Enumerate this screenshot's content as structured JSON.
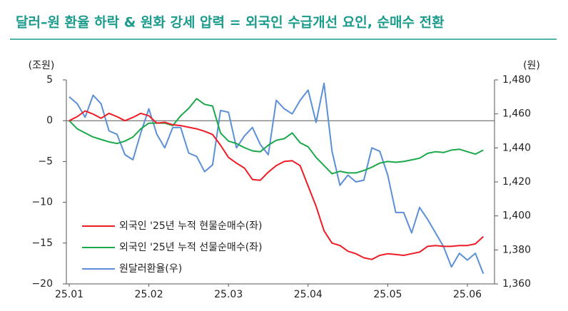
{
  "chart_data": {
    "type": "line",
    "title": "달러–원 환율 하락 & 원화 강세 압력 = 외국인 수급개선 요인, 순매수 전환",
    "y_label": "(조원)",
    "y2_label": "(원)",
    "categories": [
      "25.01",
      null,
      null,
      null,
      null,
      null,
      null,
      null,
      null,
      null,
      "25.02",
      null,
      null,
      null,
      null,
      null,
      null,
      null,
      null,
      null,
      "25.03",
      null,
      null,
      null,
      null,
      null,
      null,
      null,
      null,
      null,
      "25.04",
      null,
      null,
      null,
      null,
      null,
      null,
      null,
      null,
      null,
      "25.05",
      null,
      null,
      null,
      null,
      null,
      null,
      null,
      null,
      null,
      "25.06",
      null,
      null
    ],
    "ylim": [
      -20,
      5
    ],
    "yticks": [
      {
        "value": 5,
        "label": "5"
      },
      {
        "value": 0,
        "label": "0"
      },
      {
        "value": -5,
        "label": "−5"
      },
      {
        "value": -10,
        "label": "−10"
      },
      {
        "value": -15,
        "label": "−15"
      },
      {
        "value": -20,
        "label": "−20"
      }
    ],
    "y2lim": [
      1360,
      1480
    ],
    "y2ticks": [
      {
        "value": 1480,
        "label": "1,480"
      },
      {
        "value": 1460,
        "label": "1,460"
      },
      {
        "value": 1440,
        "label": "1,440"
      },
      {
        "value": 1420,
        "label": "1,420"
      },
      {
        "value": 1400,
        "label": "1,400"
      },
      {
        "value": 1380,
        "label": "1,380"
      },
      {
        "value": 1360,
        "label": "1,360"
      }
    ],
    "legend": "lower left",
    "series": [
      {
        "name": "외국인 '25년 누적 현물순매수(좌)",
        "color": "#ee1c25",
        "values": [
          0,
          0.5,
          1.2,
          0.8,
          0.3,
          0.9,
          0.5,
          0,
          0.4,
          0.9,
          0.6,
          -0.3,
          -0.2,
          -0.5,
          -0.6,
          -0.8,
          -1,
          -1.3,
          -1.7,
          -3,
          -4.5,
          -5.2,
          -5.8,
          -7.2,
          -7.3,
          -6.3,
          -5.5,
          -5,
          -4.9,
          -5.5,
          -8,
          -10.5,
          -13.5,
          -15,
          -15.3,
          -16,
          -16.3,
          -16.8,
          -17,
          -16.5,
          -16.3,
          -16.4,
          -16.5,
          -16.3,
          -16.1,
          -15.4,
          -15.3,
          -15.4,
          -15.4,
          -15.3,
          -15.3,
          -15.1,
          -14.2
        ]
      },
      {
        "name": "외국인 '25년 누적 선물순매수(좌)",
        "color": "#1aa84a",
        "values": [
          0,
          -1,
          -1.5,
          -2,
          -2.3,
          -2.6,
          -2.8,
          -2.5,
          -2,
          -1,
          -0.3,
          -0.3,
          -0.3,
          -0.6,
          0.6,
          1.5,
          2.7,
          2,
          1.8,
          -1.5,
          -2.5,
          -2.8,
          -3.3,
          -3.7,
          -3.8,
          -3,
          -2.4,
          -2.2,
          -1.5,
          -2.7,
          -3.2,
          -4.5,
          -5.5,
          -6.5,
          -6.2,
          -6.4,
          -6.4,
          -6.1,
          -5.7,
          -5.2,
          -5,
          -5.1,
          -5,
          -4.8,
          -4.6,
          -4,
          -3.8,
          -3.9,
          -3.6,
          -3.5,
          -3.8,
          -4.1,
          -3.6
        ]
      },
      {
        "name": "원달러환율(우)",
        "color": "#5b8fd6",
        "axis": "y2",
        "values": [
          1470,
          1466,
          1458,
          1471,
          1466,
          1450,
          1448,
          1436,
          1433,
          1449,
          1463,
          1448,
          1440,
          1452,
          1452,
          1437,
          1435,
          1426,
          1430,
          1462,
          1461,
          1440,
          1447,
          1452,
          1442,
          1436,
          1468,
          1463,
          1460,
          1468,
          1474,
          1455,
          1478,
          1438,
          1418,
          1424,
          1420,
          1421,
          1440,
          1438,
          1424,
          1402,
          1402,
          1390,
          1405,
          1398,
          1390,
          1382,
          1370,
          1378,
          1374,
          1378,
          1366
        ]
      }
    ]
  }
}
